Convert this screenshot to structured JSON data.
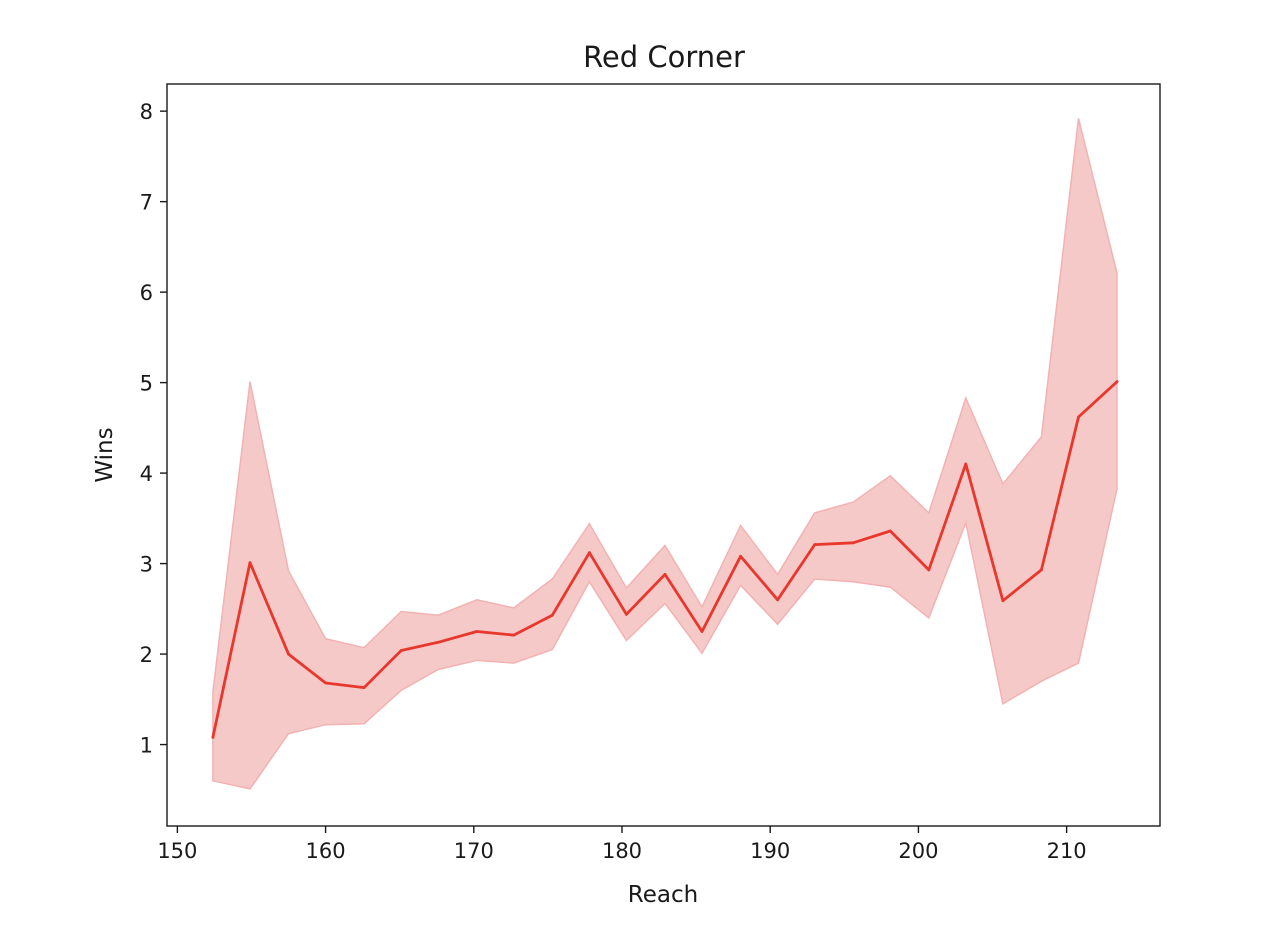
{
  "chart_data": {
    "type": "line",
    "title": "Red Corner",
    "xlabel": "Reach",
    "ylabel": "Wins",
    "xlim": [
      149.3,
      216.3
    ],
    "ylim": [
      0.1,
      8.3
    ],
    "xticks": [
      150,
      160,
      170,
      180,
      190,
      200,
      210
    ],
    "yticks": [
      1,
      2,
      3,
      4,
      5,
      6,
      7,
      8
    ],
    "grid": false,
    "colors": {
      "line": "#e8372c",
      "band": "#f6c9c9",
      "band_edge": "#f2b2b2"
    },
    "series": [
      {
        "x": [
          152.4,
          154.9,
          157.5,
          160.0,
          162.6,
          165.1,
          167.6,
          170.2,
          172.7,
          175.3,
          177.8,
          180.3,
          182.9,
          185.4,
          188.0,
          190.5,
          193.0,
          195.6,
          198.1,
          200.7,
          203.2,
          205.7,
          208.3,
          210.8,
          213.4
        ],
        "y": [
          1.08,
          3.01,
          2.0,
          1.68,
          1.63,
          2.04,
          2.13,
          2.25,
          2.21,
          2.43,
          3.12,
          2.44,
          2.88,
          2.25,
          3.08,
          2.6,
          3.21,
          3.23,
          3.36,
          2.93,
          4.1,
          2.59,
          2.93,
          4.62,
          5.01
        ],
        "lower": [
          0.6,
          0.51,
          1.12,
          1.22,
          1.23,
          1.6,
          1.83,
          1.93,
          1.9,
          2.05,
          2.8,
          2.15,
          2.56,
          2.01,
          2.76,
          2.33,
          2.83,
          2.8,
          2.74,
          2.4,
          3.45,
          1.45,
          1.7,
          1.9,
          3.83
        ],
        "upper": [
          1.58,
          5.01,
          2.92,
          2.17,
          2.07,
          2.47,
          2.43,
          2.6,
          2.51,
          2.83,
          3.44,
          2.73,
          3.2,
          2.52,
          3.42,
          2.88,
          3.56,
          3.68,
          3.97,
          3.56,
          4.83,
          3.88,
          4.4,
          7.92,
          6.21
        ]
      }
    ]
  }
}
